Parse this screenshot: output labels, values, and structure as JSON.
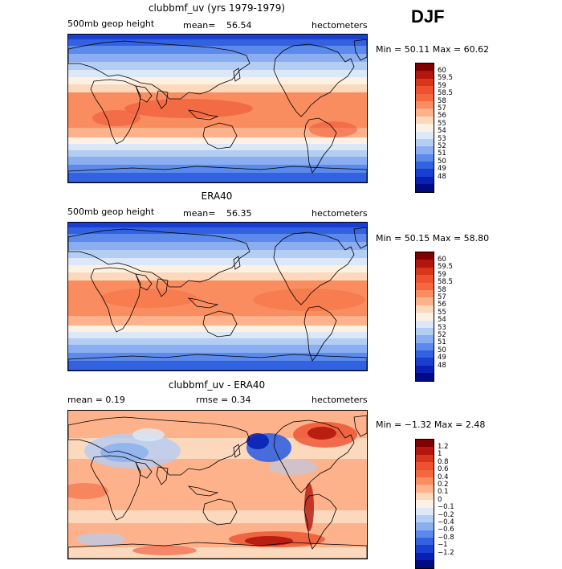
{
  "season": "DJF",
  "panels": [
    {
      "title": "clubbmf_uv (yrs 1979-1979)",
      "left_label": "500mb geop height",
      "stat_label": "mean=",
      "stat_value": "56.54",
      "units": "hectometers",
      "minmax": "Min =  50.11 Max =  60.62",
      "field": "model"
    },
    {
      "title": "ERA40",
      "left_label": "500mb geop height",
      "stat_label": "mean=",
      "stat_value": "56.35",
      "units": "hectometers",
      "minmax": "Min =  50.15 Max =  58.80",
      "field": "obs"
    },
    {
      "title": "clubbmf_uv - ERA40",
      "left_label": "mean =    0.19",
      "stat_label": "rmse =",
      "stat_value": "0.34",
      "units": "hectometers",
      "minmax": "Min =  −1.32 Max =    2.48",
      "field": "diff"
    }
  ],
  "colorbars": {
    "abs": {
      "labels": [
        "60",
        "59.5",
        "59",
        "58.5",
        "58",
        "57",
        "56",
        "55",
        "54",
        "53",
        "52",
        "51",
        "50",
        "49",
        "48"
      ],
      "colors": [
        "#7f0000",
        "#b3160c",
        "#d8361c",
        "#ee5030",
        "#f4683f",
        "#f98d60",
        "#fdb28b",
        "#fcd8bd",
        "#fdf1e4",
        "#dce8f7",
        "#b4cdf3",
        "#8aaef0",
        "#5b8aec",
        "#3362e0",
        "#1b3ed2",
        "#0a20b4",
        "#000a82"
      ]
    },
    "diff": {
      "labels": [
        "1.2",
        "1",
        "0.8",
        "0.6",
        "0.4",
        "0.2",
        "0.1",
        "0",
        "−0.1",
        "−0.2",
        "−0.4",
        "−0.6",
        "−0.8",
        "−1",
        "−1.2"
      ],
      "colors": [
        "#7f0000",
        "#b3160c",
        "#d8361c",
        "#ee5030",
        "#f4683f",
        "#f98d60",
        "#fdb28b",
        "#fcd8bd",
        "#fdf1e4",
        "#dce8f7",
        "#b4cdf3",
        "#8aaef0",
        "#5b8aec",
        "#3362e0",
        "#1b3ed2",
        "#0a20b4",
        "#000a82"
      ]
    }
  }
}
